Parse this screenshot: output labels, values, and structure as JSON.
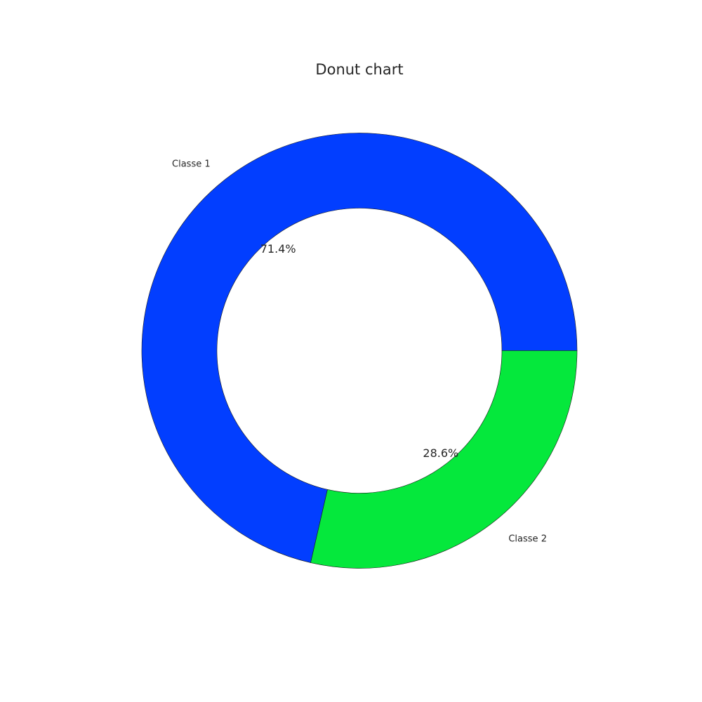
{
  "chart_data": {
    "type": "pie",
    "variant": "donut",
    "title": "Donut chart",
    "categories": [
      "Classe 1",
      "Classe 2"
    ],
    "values": [
      71.4,
      28.6
    ],
    "percent_labels": [
      "71.4%",
      "28.6%"
    ],
    "colors": [
      "#023eff",
      "#05e83c"
    ],
    "start_angle_deg": 0,
    "direction": "counterclockwise"
  }
}
